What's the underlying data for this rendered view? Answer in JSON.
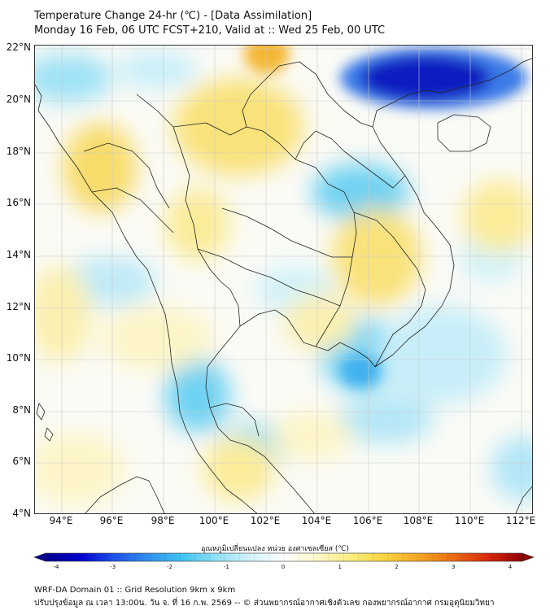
{
  "header": {
    "title_line1": "Temperature Change 24-hr (℃) - [Data Assimilation]",
    "title_line2": "Monday 16 Feb, 06 UTC FCST+210, Valid at :: Wed 25 Feb, 00 UTC"
  },
  "map": {
    "lat_labels": [
      "22°N",
      "20°N",
      "18°N",
      "16°N",
      "14°N",
      "12°N",
      "10°N",
      "8°N",
      "6°N",
      "4°N"
    ],
    "lon_labels": [
      "94°E",
      "96°E",
      "98°E",
      "100°E",
      "102°E",
      "104°E",
      "106°E",
      "108°E",
      "110°E",
      "112°E"
    ]
  },
  "colorbar": {
    "title": "อุณหภูมิเปลี่ยนแปลง หน่วย องศาเซลเซียส (℃)",
    "ticks": [
      "-4",
      "-3",
      "-2",
      "-1",
      "0",
      "1",
      "2",
      "3",
      "4"
    ],
    "min": -4,
    "max": 4,
    "colors": [
      "#00008b",
      "#0000cd",
      "#1e50e6",
      "#2f8fef",
      "#3fc3f0",
      "#8ee0f5",
      "#d2f2fa",
      "#ffffff",
      "#fdf8c8",
      "#fbec7a",
      "#f8d23c",
      "#f3a424",
      "#ea6a12",
      "#d8270a",
      "#8b0000"
    ]
  },
  "footer": {
    "line1": "WRF-DA Domain 01 :: Grid Resolution 9km x 9km",
    "line2": "ปรับปรุงข้อมูล ณ เวลา 13:00น. วัน จ. ที่ 16 ก.พ. 2569 -- © ส่วนพยากรณ์อากาศเชิงตัวเลข กองพยากรณ์อากาศ กรมอุตุนิยมวิทยา"
  }
}
